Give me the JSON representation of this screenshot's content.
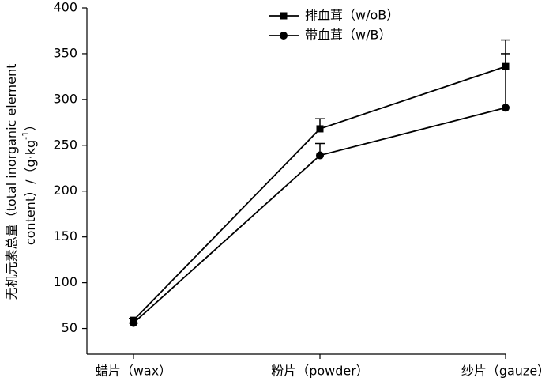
{
  "chart_data": {
    "type": "line",
    "y_label_lines": [
      [
        "无机元素总量（total inorganic element"
      ],
      [
        "content）/（g·kg",
        "-1",
        "）"
      ]
    ],
    "categories": [
      "蜡片（wax）",
      "粉片（powder）",
      "纱片（gauze）"
    ],
    "series": [
      {
        "name": "排血茸（w/oB）",
        "color": "#000000",
        "marker": "square",
        "values": [
          59,
          268,
          336
        ],
        "errors": [
          2,
          11,
          29
        ]
      },
      {
        "name": "带血茸（w/B）",
        "color": "#000000",
        "marker": "circle",
        "values": [
          56,
          239,
          291
        ],
        "errors": [
          0,
          13,
          59
        ]
      }
    ],
    "ylim": [
      22,
      400
    ],
    "yticks": [
      50,
      100,
      150,
      200,
      250,
      300,
      350,
      400
    ],
    "grid": false
  }
}
